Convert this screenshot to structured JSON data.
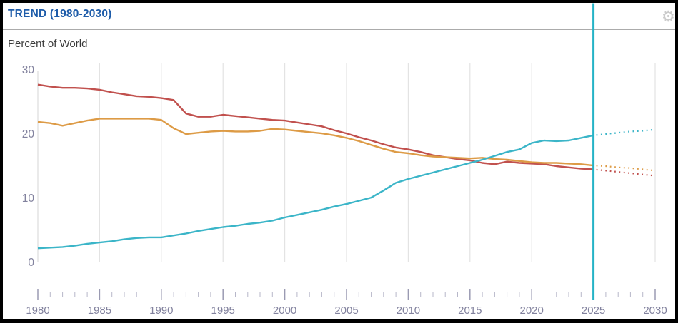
{
  "header": {
    "title": "TREND (1980-2030)"
  },
  "chart": {
    "y_axis_title": "Percent of World"
  },
  "colors": {
    "title_blue": "#1e5ca9",
    "divider_gray": "#ababab",
    "axis_text": "#82829e",
    "gridline": "#e3e3e3",
    "y_axis_line": "#e2e2e2",
    "tick_minor": "#b7b7c9",
    "tick_major": "#9a9ab2",
    "marker_cyan": "#25b3c6",
    "gear_gray": "#cbcbcb"
  },
  "chart_data": {
    "type": "line",
    "title": "TREND (1980-2030)",
    "ylabel": "Percent of World",
    "xlabel": "",
    "ylim": [
      0,
      30
    ],
    "xlim": [
      1980,
      2030
    ],
    "y_ticks": [
      30,
      20,
      10,
      0
    ],
    "x_tick_labels": [
      1980,
      1985,
      1990,
      1995,
      2000,
      2005,
      2010,
      2015,
      2020,
      2025,
      2030
    ],
    "minor_tick_step_years": 1,
    "gridline_years": [
      1985,
      1990,
      1995,
      2000,
      2005,
      2010,
      2015,
      2020,
      2030
    ],
    "marker_year": 2025,
    "solid_until": 2025,
    "projection_style": "dotted",
    "legend": "none",
    "grid": "vertical-only",
    "x": [
      1980,
      1981,
      1982,
      1983,
      1984,
      1985,
      1986,
      1987,
      1988,
      1989,
      1990,
      1991,
      1992,
      1993,
      1994,
      1995,
      1996,
      1997,
      1998,
      1999,
      2000,
      2001,
      2002,
      2003,
      2004,
      2005,
      2006,
      2007,
      2008,
      2009,
      2010,
      2011,
      2012,
      2013,
      2014,
      2015,
      2016,
      2017,
      2018,
      2019,
      2020,
      2021,
      2022,
      2023,
      2024,
      2025,
      2026,
      2027,
      2028,
      2029,
      2030
    ],
    "series": [
      {
        "id": "red",
        "color": "#c1514e",
        "values": [
          27.7,
          27.4,
          27.2,
          27.2,
          27.1,
          26.9,
          26.5,
          26.2,
          25.9,
          25.8,
          25.6,
          25.3,
          23.2,
          22.7,
          22.7,
          23.0,
          22.8,
          22.6,
          22.4,
          22.2,
          22.1,
          21.8,
          21.5,
          21.2,
          20.6,
          20.1,
          19.5,
          19.0,
          18.4,
          17.9,
          17.6,
          17.2,
          16.7,
          16.4,
          16.1,
          15.9,
          15.5,
          15.3,
          15.7,
          15.5,
          15.4,
          15.3,
          15.0,
          14.8,
          14.6,
          14.5,
          14.3,
          14.1,
          13.9,
          13.7,
          13.5
        ]
      },
      {
        "id": "orange",
        "color": "#dd9b46",
        "values": [
          21.9,
          21.7,
          21.3,
          21.7,
          22.1,
          22.4,
          22.4,
          22.4,
          22.4,
          22.4,
          22.2,
          20.9,
          20.0,
          20.2,
          20.4,
          20.5,
          20.4,
          20.4,
          20.5,
          20.8,
          20.7,
          20.5,
          20.3,
          20.1,
          19.8,
          19.4,
          18.9,
          18.3,
          17.7,
          17.2,
          17.0,
          16.7,
          16.5,
          16.4,
          16.3,
          16.2,
          16.3,
          16.1,
          16.0,
          15.8,
          15.6,
          15.5,
          15.5,
          15.4,
          15.3,
          15.1,
          15.0,
          14.8,
          14.7,
          14.5,
          14.3
        ]
      },
      {
        "id": "cyan",
        "color": "#3bb5c8",
        "values": [
          2.2,
          2.3,
          2.4,
          2.6,
          2.9,
          3.1,
          3.3,
          3.6,
          3.8,
          3.9,
          3.9,
          4.2,
          4.5,
          4.9,
          5.2,
          5.5,
          5.7,
          6.0,
          6.2,
          6.5,
          7.0,
          7.4,
          7.8,
          8.2,
          8.7,
          9.1,
          9.6,
          10.1,
          11.2,
          12.4,
          13.0,
          13.5,
          14.0,
          14.5,
          15.0,
          15.5,
          16.0,
          16.6,
          17.2,
          17.6,
          18.6,
          19.0,
          18.9,
          19.0,
          19.4,
          19.8,
          20.0,
          20.2,
          20.4,
          20.5,
          20.7
        ]
      }
    ]
  }
}
